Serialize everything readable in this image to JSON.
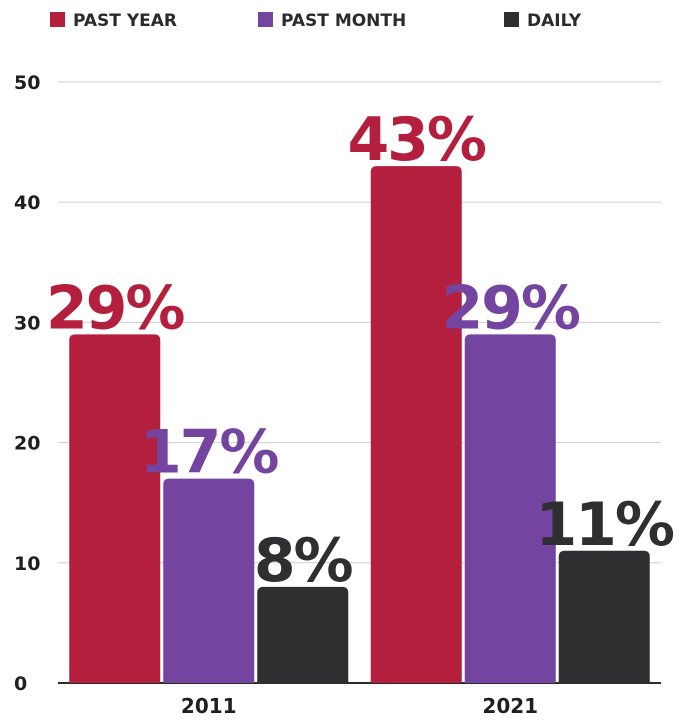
{
  "chart_data": {
    "type": "bar",
    "title": "",
    "xlabel": "",
    "ylabel": "",
    "categories": [
      "2011",
      "2021"
    ],
    "ylim": [
      0,
      50
    ],
    "yticks": [
      0,
      10,
      20,
      30,
      40,
      50
    ],
    "grid": true,
    "legend_position": "top-left",
    "series": [
      {
        "name": "PAST YEAR",
        "values": [
          29,
          43
        ],
        "labels": [
          "29%",
          "43%"
        ],
        "color": "#b31f3c"
      },
      {
        "name": "PAST MONTH",
        "values": [
          17,
          29
        ],
        "labels": [
          "17%",
          "29%"
        ],
        "color": "#7345a0"
      },
      {
        "name": "DAILY",
        "values": [
          8,
          11
        ],
        "labels": [
          "8%",
          "11%"
        ],
        "color": "#2f2e30"
      }
    ]
  }
}
